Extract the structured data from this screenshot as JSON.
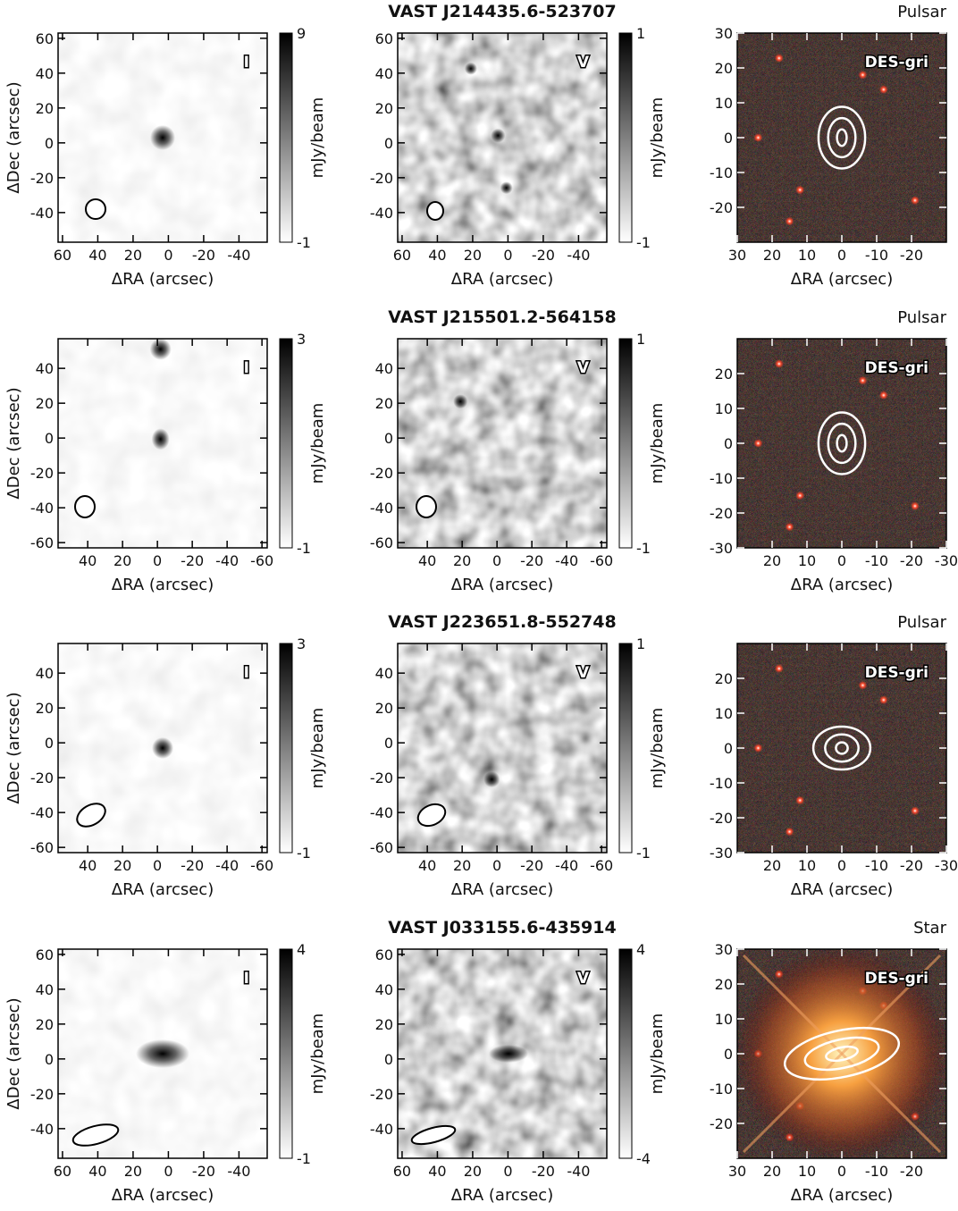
{
  "chart_data": [
    {
      "type": "image",
      "label": "I",
      "xlabel": "ΔRA (arcsec)",
      "ylabel": "ΔDec (arcsec)",
      "xlim": [
        62.5,
        -56
      ],
      "ylim": [
        -57,
        63
      ],
      "xticks": [
        60,
        40,
        20,
        0,
        -20,
        -40
      ],
      "yticks": [
        60,
        40,
        20,
        0,
        -20,
        -40
      ],
      "colorbar": {
        "label": "mJy/beam",
        "lim": [
          -1,
          9
        ],
        "ticks": [
          -1,
          9
        ]
      }
    },
    {
      "type": "image",
      "title": "VAST J214435.6-523707",
      "label": "V",
      "xlabel": "ΔRA (arcsec)",
      "xlim": [
        62.5,
        -56
      ],
      "ylim": [
        -57,
        63
      ],
      "xticks": [
        60,
        40,
        20,
        0,
        -20,
        -40
      ],
      "yticks": [
        60,
        40,
        20,
        0,
        -20,
        -40
      ],
      "colorbar": {
        "label": "mJy/beam",
        "lim": [
          -1,
          1
        ],
        "ticks": [
          -1,
          1
        ]
      }
    },
    {
      "type": "optical",
      "annotation": "Pulsar",
      "label": "DES-gri",
      "xlabel": "ΔRA (arcsec)",
      "xlim": [
        30,
        -30
      ],
      "ylim": [
        -30,
        30
      ],
      "xticks": [
        30,
        20,
        10,
        0,
        -10,
        -20
      ],
      "yticks": [
        30,
        20,
        10,
        0,
        -10,
        -20
      ]
    },
    {
      "type": "image",
      "label": "I",
      "xlabel": "ΔRA (arcsec)",
      "ylabel": "ΔDec (arcsec)",
      "xlim": [
        57,
        -63
      ],
      "ylim": [
        -63,
        57
      ],
      "xticks": [
        40,
        20,
        0,
        -20,
        -40,
        -60
      ],
      "yticks": [
        40,
        20,
        0,
        -20,
        -40,
        -60
      ],
      "colorbar": {
        "label": "mJy/beam",
        "lim": [
          -1,
          3
        ],
        "ticks": [
          -1,
          3
        ]
      }
    },
    {
      "type": "image",
      "title": "VAST J215501.2-564158",
      "label": "V",
      "xlabel": "ΔRA (arcsec)",
      "xlim": [
        57,
        -63
      ],
      "ylim": [
        -63,
        57
      ],
      "xticks": [
        40,
        20,
        0,
        -20,
        -40,
        -60
      ],
      "yticks": [
        40,
        20,
        0,
        -20,
        -40,
        -60
      ],
      "colorbar": {
        "label": "mJy/beam",
        "lim": [
          -1,
          1
        ],
        "ticks": [
          -1,
          1
        ]
      }
    },
    {
      "type": "optical",
      "annotation": "Pulsar",
      "label": "DES-gri",
      "xlabel": "ΔRA (arcsec)",
      "xlim": [
        30,
        -30
      ],
      "ylim": [
        -30,
        30
      ],
      "xticks": [
        20,
        10,
        0,
        -10,
        -20,
        -30
      ],
      "yticks": [
        20,
        10,
        0,
        -10,
        -20,
        -30
      ]
    },
    {
      "type": "image",
      "label": "I",
      "xlabel": "ΔRA (arcsec)",
      "ylabel": "ΔDec (arcsec)",
      "xlim": [
        57,
        -63
      ],
      "ylim": [
        -63,
        57
      ],
      "xticks": [
        40,
        20,
        0,
        -20,
        -40,
        -60
      ],
      "yticks": [
        40,
        20,
        0,
        -20,
        -40,
        -60
      ],
      "colorbar": {
        "label": "mJy/beam",
        "lim": [
          -1,
          3
        ],
        "ticks": [
          -1,
          3
        ]
      }
    },
    {
      "type": "image",
      "title": "VAST J223651.8-552748",
      "label": "V",
      "xlabel": "ΔRA (arcsec)",
      "xlim": [
        57,
        -63
      ],
      "ylim": [
        -63,
        57
      ],
      "xticks": [
        40,
        20,
        0,
        -20,
        -40,
        -60
      ],
      "yticks": [
        40,
        20,
        0,
        -20,
        -40,
        -60
      ],
      "colorbar": {
        "label": "mJy/beam",
        "lim": [
          -1,
          1
        ],
        "ticks": [
          -1,
          1
        ]
      }
    },
    {
      "type": "optical",
      "annotation": "Pulsar",
      "label": "DES-gri",
      "xlabel": "ΔRA (arcsec)",
      "xlim": [
        30,
        -30
      ],
      "ylim": [
        -30,
        30
      ],
      "xticks": [
        20,
        10,
        0,
        -10,
        -20,
        -30
      ],
      "yticks": [
        20,
        10,
        0,
        -10,
        -20,
        -30
      ]
    },
    {
      "type": "image",
      "label": "I",
      "xlabel": "ΔRA (arcsec)",
      "ylabel": "ΔDec (arcsec)",
      "xlim": [
        62.5,
        -56
      ],
      "ylim": [
        -57,
        63
      ],
      "xticks": [
        60,
        40,
        20,
        0,
        -20,
        -40
      ],
      "yticks": [
        60,
        40,
        20,
        0,
        -20,
        -40
      ],
      "colorbar": {
        "label": "mJy/beam",
        "lim": [
          -1,
          4
        ],
        "ticks": [
          -1,
          4
        ]
      }
    },
    {
      "type": "image",
      "title": "VAST J033155.6-435914",
      "label": "V",
      "xlabel": "ΔRA (arcsec)",
      "xlim": [
        62.5,
        -56
      ],
      "ylim": [
        -57,
        63
      ],
      "xticks": [
        60,
        40,
        20,
        0,
        -20,
        -40
      ],
      "yticks": [
        60,
        40,
        20,
        0,
        -20,
        -40
      ],
      "colorbar": {
        "label": "mJy/beam",
        "lim": [
          -4,
          4
        ],
        "ticks": [
          -4,
          4
        ]
      }
    },
    {
      "type": "optical",
      "annotation": "Star",
      "label": "DES-gri",
      "xlabel": "ΔRA (arcsec)",
      "xlim": [
        30,
        -30
      ],
      "ylim": [
        -30,
        30
      ],
      "xticks": [
        30,
        20,
        10,
        0,
        -10,
        -20
      ],
      "yticks": [
        30,
        20,
        10,
        0,
        -10,
        -20
      ]
    }
  ]
}
